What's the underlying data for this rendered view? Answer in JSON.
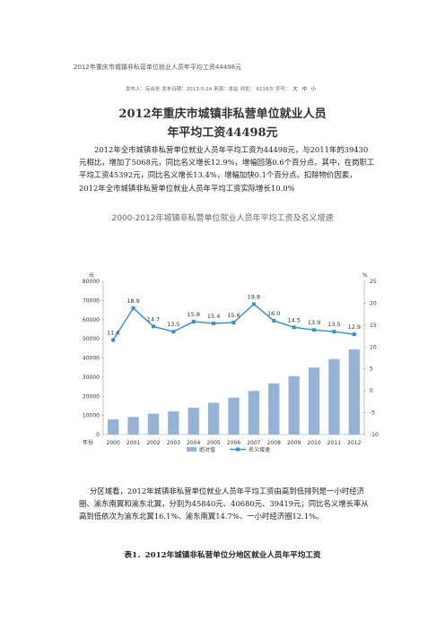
{
  "page_header": "2012年重庆市城镇非私营单位就业人员年平均工资44498元",
  "meta": {
    "text": "发布人：综合处 发布日期：2013-5-24 来源：本站 浏览：  6218次 字号：",
    "sizes": [
      "大",
      "中",
      "小"
    ]
  },
  "title": {
    "line1": "2012年重庆市城镇非私营单位就业人员",
    "line2": "年平均工资44498元"
  },
  "paragraph1": "2012年全市城镇非私营单位就业人员年平均工资为44498元，与2011年的39430元相比，增加了5068元，同比名义增长12.9%，增幅回落0.6个百分点。其中，在岗职工平均工资45392元，同比名义增长13.4%，增幅加快0.1个百分点。扣除物价因素，2012年全市城镇非私营单位就业人员年平均工资实际增长10.0%",
  "paragraph2": "分区域看，2012年城镇非私营单位就业人员年平均工资由高到低排列是一小时经济圈、渝东南翼和渝东北翼，分别为45840元、40680元、39419元；同比名义增长率从高到低依次为渝东北翼16.1%、渝东南翼14.7%、一小时经济圈12.1%。",
  "table_title": "表1．2012年城镇非私营单位分地区就业人员年平均工资",
  "chart_data": {
    "type": "bar",
    "title": "2000-2012年城镇非私营单位就业人员年平均工资及名义增速",
    "categories": [
      "2000",
      "2001",
      "2002",
      "2003",
      "2004",
      "2005",
      "2006",
      "2007",
      "2008",
      "2009",
      "2010",
      "2011",
      "2012"
    ],
    "left_axis_unit": "元",
    "right_axis_unit": "%",
    "x_axis_unit": "年份",
    "ylim_left": [
      0,
      80000
    ],
    "yticks_left": [
      "0",
      "10000",
      "20000",
      "30000",
      "40000",
      "50000",
      "60000",
      "70000",
      "80000"
    ],
    "ylim_right": [
      -10,
      25
    ],
    "yticks_right": [
      "-10",
      "-5",
      "0",
      "5",
      "10",
      "15",
      "20",
      "25"
    ],
    "series": [
      {
        "name": "绝对值",
        "type": "bar",
        "color": "#95b3d7",
        "values": [
          7900,
          9200,
          10900,
          12100,
          14000,
          16600,
          19300,
          22800,
          26700,
          30500,
          35000,
          39430,
          44498
        ]
      },
      {
        "name": "名义增速",
        "type": "line",
        "color": "#2e8fd1",
        "values": [
          11.6,
          18.9,
          14.7,
          13.5,
          15.8,
          15.4,
          15.6,
          19.8,
          16.0,
          14.5,
          13.9,
          13.5,
          12.9
        ],
        "labels": [
          "11.6",
          "18.9",
          "14.7",
          "13.5",
          "15.8",
          "15.4",
          "15.6",
          "19.8",
          "16.0",
          "14.5",
          "13.9",
          "13.5",
          "12.9"
        ]
      }
    ]
  }
}
